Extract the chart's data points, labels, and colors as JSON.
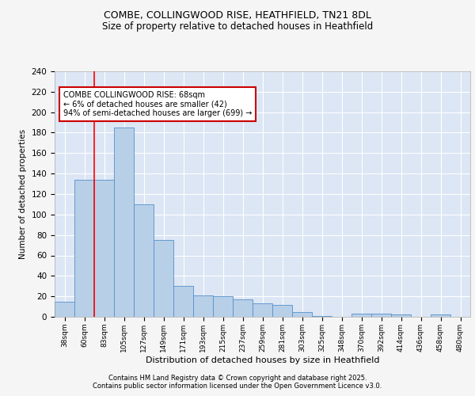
{
  "title1": "COMBE, COLLINGWOOD RISE, HEATHFIELD, TN21 8DL",
  "title2": "Size of property relative to detached houses in Heathfield",
  "xlabel": "Distribution of detached houses by size in Heathfield",
  "ylabel": "Number of detached properties",
  "categories": [
    "38sqm",
    "60sqm",
    "83sqm",
    "105sqm",
    "127sqm",
    "149sqm",
    "171sqm",
    "193sqm",
    "215sqm",
    "237sqm",
    "259sqm",
    "281sqm",
    "303sqm",
    "325sqm",
    "348sqm",
    "370sqm",
    "392sqm",
    "414sqm",
    "436sqm",
    "458sqm",
    "480sqm"
  ],
  "values": [
    15,
    134,
    134,
    185,
    110,
    75,
    30,
    21,
    20,
    17,
    13,
    12,
    5,
    1,
    0,
    3,
    3,
    2,
    0,
    2,
    0
  ],
  "bar_color": "#b8cfe8",
  "bar_edge_color": "#5590c8",
  "bg_color": "#dce6f5",
  "grid_color": "#ffffff",
  "red_line_x": 1.5,
  "annotation_text": "COMBE COLLINGWOOD RISE: 68sqm\n← 6% of detached houses are smaller (42)\n94% of semi-detached houses are larger (699) →",
  "annotation_box_color": "#ffffff",
  "annotation_box_edge": "#cc0000",
  "footnote1": "Contains HM Land Registry data © Crown copyright and database right 2025.",
  "footnote2": "Contains public sector information licensed under the Open Government Licence v3.0.",
  "ylim": [
    0,
    240
  ],
  "yticks": [
    0,
    20,
    40,
    60,
    80,
    100,
    120,
    140,
    160,
    180,
    200,
    220,
    240
  ],
  "fig_bg": "#f5f5f5"
}
